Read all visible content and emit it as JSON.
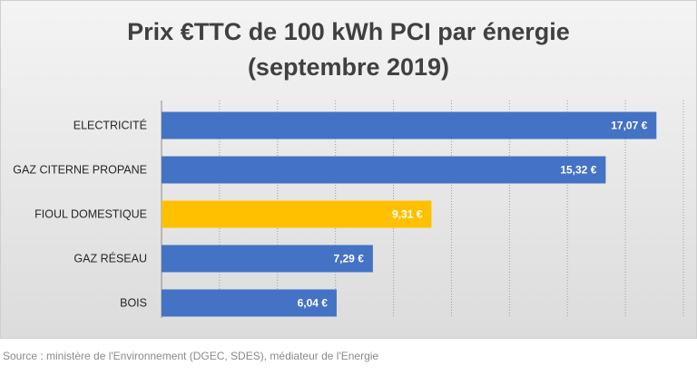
{
  "chart_data": {
    "type": "bar",
    "orientation": "horizontal",
    "title_line1": "Prix €TTC de 100 kWh PCI par énergie",
    "title_line2": "(septembre 2019)",
    "categories": [
      "ELECTRICITÉ",
      "GAZ CITERNE PROPANE",
      "FIOUL DOMESTIQUE",
      "GAZ RÉSEAU",
      "BOIS"
    ],
    "values": [
      17.07,
      15.32,
      9.31,
      7.29,
      6.04
    ],
    "value_labels": [
      "17,07 €",
      "15,32 €",
      "9,31 €",
      "7,29 €",
      "6,04 €"
    ],
    "bar_colors": [
      "#4472c4",
      "#4472c4",
      "#ffc000",
      "#4472c4",
      "#4472c4"
    ],
    "highlighted_category": "FIOUL DOMESTIQUE",
    "xlim": [
      0,
      18
    ],
    "x_gridline_step": 2,
    "grid": true,
    "xlabel": "",
    "ylabel": ""
  },
  "colors": {
    "primary_bar": "#4472c4",
    "highlight_bar": "#ffc000",
    "title_text": "#404040"
  },
  "source": "Source : ministère de l'Environnement (DGEC, SDES), médiateur de l'Energie"
}
